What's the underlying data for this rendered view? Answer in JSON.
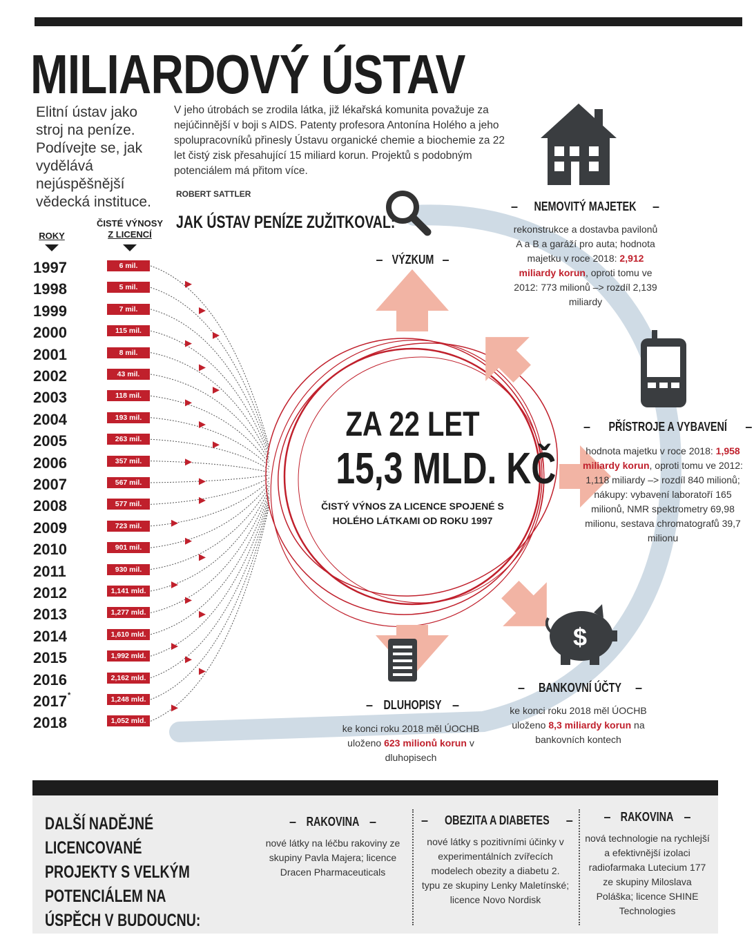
{
  "title": "MILIARDOVÝ ÚSTAV",
  "lead": "Elitní ústav jako stroj na peníze. Podívejte se, jak vydělává nejúspěšnější vědecká instituce.",
  "intro": "V jeho útrobách se zrodila látka, již lékařská komunita považuje za nejúčinnější v boji s AIDS. Patenty profesora Antonína Holého a jeho spolupracovníků přinesly Ústavu organické chemie a biochemie za 22 let čistý zisk přesahující 15 miliard korun. Projektů s podobným potenciálem má přitom více.",
  "author": "ROBERT SATTLER",
  "section_heading": "JAK ÚSTAV PENÍZE ZUŽITKOVAL:",
  "columns": {
    "years_label": "ROKY",
    "income_label_1": "ČISTÉ VÝNOSY",
    "income_label_2": "Z LICENCÍ"
  },
  "chart_data": {
    "type": "table",
    "columns": [
      "ROKY",
      "ČISTÉ VÝNOSY Z LICENCÍ"
    ],
    "rows": [
      {
        "year": "1997",
        "value": "6 mil."
      },
      {
        "year": "1998",
        "value": "5 mil."
      },
      {
        "year": "1999",
        "value": "7 mil."
      },
      {
        "year": "2000",
        "value": "115 mil."
      },
      {
        "year": "2001",
        "value": "8 mil."
      },
      {
        "year": "2002",
        "value": "43 mil."
      },
      {
        "year": "2003",
        "value": "118 mil."
      },
      {
        "year": "2004",
        "value": "193 mil."
      },
      {
        "year": "2005",
        "value": "263 mil."
      },
      {
        "year": "2006",
        "value": "357 mil."
      },
      {
        "year": "2007",
        "value": "567 mil."
      },
      {
        "year": "2008",
        "value": "577 mil."
      },
      {
        "year": "2009",
        "value": "723 mil."
      },
      {
        "year": "2010",
        "value": "901 mil."
      },
      {
        "year": "2011",
        "value": "930 mil."
      },
      {
        "year": "2012",
        "value": "1,141 mld."
      },
      {
        "year": "2013",
        "value": "1,277 mld."
      },
      {
        "year": "2014",
        "value": "1,610 mld."
      },
      {
        "year": "2015",
        "value": "1,992 mld."
      },
      {
        "year": "2016",
        "value": "2,162 mld."
      },
      {
        "year": "2017",
        "value": "1,248 mld.",
        "mark": "*"
      },
      {
        "year": "2018",
        "value": "1,052 mld."
      }
    ]
  },
  "center": {
    "line1": "ZA 22 LET",
    "line2": "15,3 MLD. KČ",
    "sub": "ČISTÝ VÝNOS ZA LICENCE SPOJENÉ S HOLÉHO LÁTKAMI OD ROKU 1997"
  },
  "categories": {
    "research": {
      "title": "VÝZKUM",
      "icon": "magnifier-icon"
    },
    "property": {
      "title": "NEMOVITÝ MAJETEK",
      "icon": "house-icon",
      "body_a": "rekonstrukce a dostavba pavilonů A a B a garáží pro auta; hodnota majetku v roce 2018:",
      "body_hl": "2,912 miliardy korun",
      "body_b": ", oproti tomu ve 2012: 773 milionů –> rozdíl 2,139 miliardy"
    },
    "equipment": {
      "title": "PŘÍSTROJE A VYBAVENÍ",
      "icon": "phone-icon",
      "body_a": "hodnota majetku v roce 2018:",
      "body_hl": "1,958 miliardy korun",
      "body_b": ", oproti tomu ve 2012: 1,118 miliardy –> rozdíl 840 milionů; nákupy: vybavení laboratoří 165 milionů, NMR spektrometry 69,98 milionu, sestava chromatografů 39,7 milionu"
    },
    "bank": {
      "title": "BANKOVNÍ ÚČTY",
      "icon": "piggy-bank-icon",
      "symbol": "$",
      "body_a": "ke konci roku 2018 měl ÚOCHB uloženo",
      "body_hl": "8,3 miliardy korun",
      "body_b": "na bankovních kontech"
    },
    "bonds": {
      "title": "DLUHOPISY",
      "icon": "document-icon",
      "body_a": "ke konci roku 2018 měl ÚOCHB uloženo",
      "body_hl": "623 milionů korun",
      "body_b": "v dluhopisech"
    }
  },
  "bottom": {
    "heading": "DALŠÍ NADĚJNÉ LICENCOVANÉ PROJEKTY S VELKÝM POTENCIÁLEM NA ÚSPĚCH V BUDOUCNU:",
    "projects": [
      {
        "title": "RAKOVINA",
        "body": "nové látky na léčbu rakoviny ze skupiny Pavla Majera; licence Dracen Pharmaceuticals"
      },
      {
        "title": "OBEZITA A DIABETES",
        "body": "nové látky s pozitivními účinky v experimentálních zvířecích modelech obezity a diabetu 2. typu ze skupiny Lenky Maletínské; licence Novo Nordisk"
      },
      {
        "title": "RAKOVINA",
        "body": "nová technologie na rychlejší a efektivnější izolaci radiofarmaka Lutecium 177 ze skupiny Miloslava Poláška; licence SHINE Technologies"
      }
    ]
  },
  "colors": {
    "accent": "#c0202c",
    "dark": "#1d1d1d",
    "loop": "#cfdbe5",
    "arrow": "#f2b4a4"
  }
}
